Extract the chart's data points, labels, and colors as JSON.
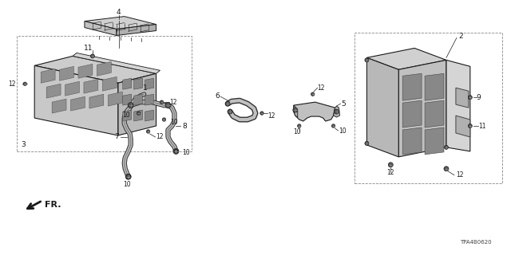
{
  "bg_color": "#ffffff",
  "fig_width": 6.4,
  "fig_height": 3.2,
  "watermark": "TPA4B0620",
  "line_color": "#1a1a1a",
  "part_fill": "#d8d8d8",
  "part_fill_dark": "#aaaaaa",
  "part_fill_light": "#eeeeee",
  "font_size": 6.5,
  "small_font": 5.5,
  "bolt_color": "#555555",
  "dashed_box_color": "#888888"
}
